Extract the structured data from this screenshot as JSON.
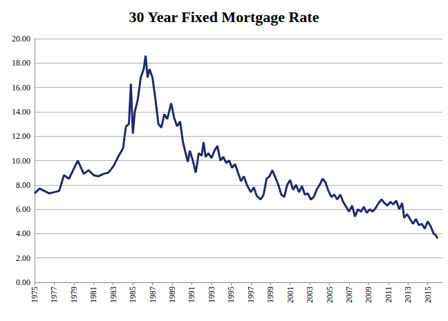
{
  "chart_data": {
    "type": "line",
    "title": "30 Year Fixed Mortgage Rate",
    "x": [
      1975.0,
      1975.5,
      1976.0,
      1976.5,
      1977.0,
      1977.5,
      1978.0,
      1978.5,
      1979.4,
      1980.0,
      1980.5,
      1981.0,
      1981.5,
      1982.0,
      1982.5,
      1983.0,
      1983.5,
      1984.0,
      1984.3,
      1984.6,
      1984.8,
      1985.0,
      1985.2,
      1985.5,
      1985.8,
      1986.1,
      1986.3,
      1986.5,
      1986.7,
      1987.0,
      1987.3,
      1987.6,
      1987.9,
      1988.2,
      1988.5,
      1988.9,
      1989.2,
      1989.5,
      1989.8,
      1990.1,
      1990.4,
      1990.6,
      1990.8,
      1991.1,
      1991.4,
      1991.7,
      1992.0,
      1992.2,
      1992.4,
      1992.7,
      1993.0,
      1993.3,
      1993.6,
      1993.9,
      1994.2,
      1994.5,
      1994.8,
      1995.1,
      1995.4,
      1995.7,
      1996.0,
      1996.3,
      1996.6,
      1997.0,
      1997.3,
      1997.6,
      1998.0,
      1998.3,
      1998.6,
      1998.9,
      1999.2,
      1999.5,
      1999.8,
      2000.1,
      2000.4,
      2000.7,
      2001.0,
      2001.3,
      2001.6,
      2001.9,
      2002.2,
      2002.5,
      2002.8,
      2003.1,
      2003.4,
      2003.7,
      2004.0,
      2004.3,
      2004.6,
      2004.9,
      2005.2,
      2005.5,
      2005.8,
      2006.1,
      2006.4,
      2006.7,
      2007.0,
      2007.3,
      2007.6,
      2007.9,
      2008.2,
      2008.5,
      2008.8,
      2009.1,
      2009.4,
      2009.7,
      2010.0,
      2010.3,
      2010.6,
      2010.9,
      2011.2,
      2011.5,
      2011.8,
      2012.1,
      2012.4,
      2012.6,
      2012.9,
      2013.2,
      2013.5,
      2013.8,
      2014.1,
      2014.4,
      2014.7,
      2015.0,
      2015.3,
      2015.6,
      2015.8,
      2016.0
    ],
    "values": [
      7.3,
      7.7,
      7.5,
      7.3,
      7.4,
      7.5,
      8.8,
      8.5,
      10.0,
      8.9,
      9.2,
      8.8,
      8.7,
      8.9,
      9.0,
      9.5,
      10.3,
      11.0,
      12.8,
      13.0,
      16.3,
      12.2,
      14.0,
      15.0,
      16.8,
      17.5,
      18.6,
      16.8,
      17.5,
      16.8,
      15.0,
      13.0,
      12.7,
      13.8,
      13.4,
      14.7,
      13.5,
      12.8,
      13.2,
      11.5,
      10.5,
      9.9,
      10.8,
      10.0,
      9.0,
      10.6,
      10.4,
      11.5,
      10.3,
      10.6,
      10.2,
      10.8,
      11.2,
      10.0,
      10.3,
      9.8,
      10.0,
      9.4,
      9.7,
      9.0,
      8.3,
      8.7,
      8.0,
      7.4,
      7.8,
      7.1,
      6.8,
      7.2,
      8.5,
      8.7,
      9.2,
      8.6,
      8.0,
      7.2,
      7.0,
      8.0,
      8.4,
      7.6,
      8.0,
      7.4,
      7.9,
      7.2,
      7.3,
      6.8,
      7.0,
      7.6,
      8.0,
      8.5,
      8.2,
      7.5,
      7.0,
      7.2,
      6.8,
      7.2,
      6.6,
      6.2,
      5.8,
      6.3,
      5.4,
      6.0,
      5.8,
      6.2,
      5.7,
      6.0,
      5.8,
      6.1,
      6.5,
      6.8,
      6.5,
      6.3,
      6.6,
      6.4,
      6.7,
      6.0,
      6.5,
      5.3,
      5.6,
      5.2,
      4.8,
      5.2,
      4.7,
      4.8,
      4.4,
      5.0,
      4.6,
      4.0,
      3.9,
      3.6
    ],
    "color": "#1f2a68",
    "xlim": [
      1975,
      2016.5
    ],
    "xticks": [
      1975,
      1977,
      1979,
      1981,
      1983,
      1985,
      1987,
      1989,
      1991,
      1993,
      1995,
      1997,
      1999,
      2001,
      2003,
      2005,
      2007,
      2009,
      2011,
      2013,
      2015
    ],
    "ylim": [
      0,
      20
    ],
    "yticks": [
      {
        "value": 0,
        "label": "0.00"
      },
      {
        "value": 2,
        "label": "2.00"
      },
      {
        "value": 4,
        "label": "4.00"
      },
      {
        "value": 6,
        "label": "6.00"
      },
      {
        "value": 8,
        "label": "8.00"
      },
      {
        "value": 10,
        "label": "10.00"
      },
      {
        "value": 12,
        "label": "12.00"
      },
      {
        "value": 14,
        "label": "14.00"
      },
      {
        "value": 16,
        "label": "16.00"
      },
      {
        "value": 18,
        "label": "18.00"
      },
      {
        "value": 20,
        "label": "20.00"
      }
    ],
    "grid": true
  }
}
